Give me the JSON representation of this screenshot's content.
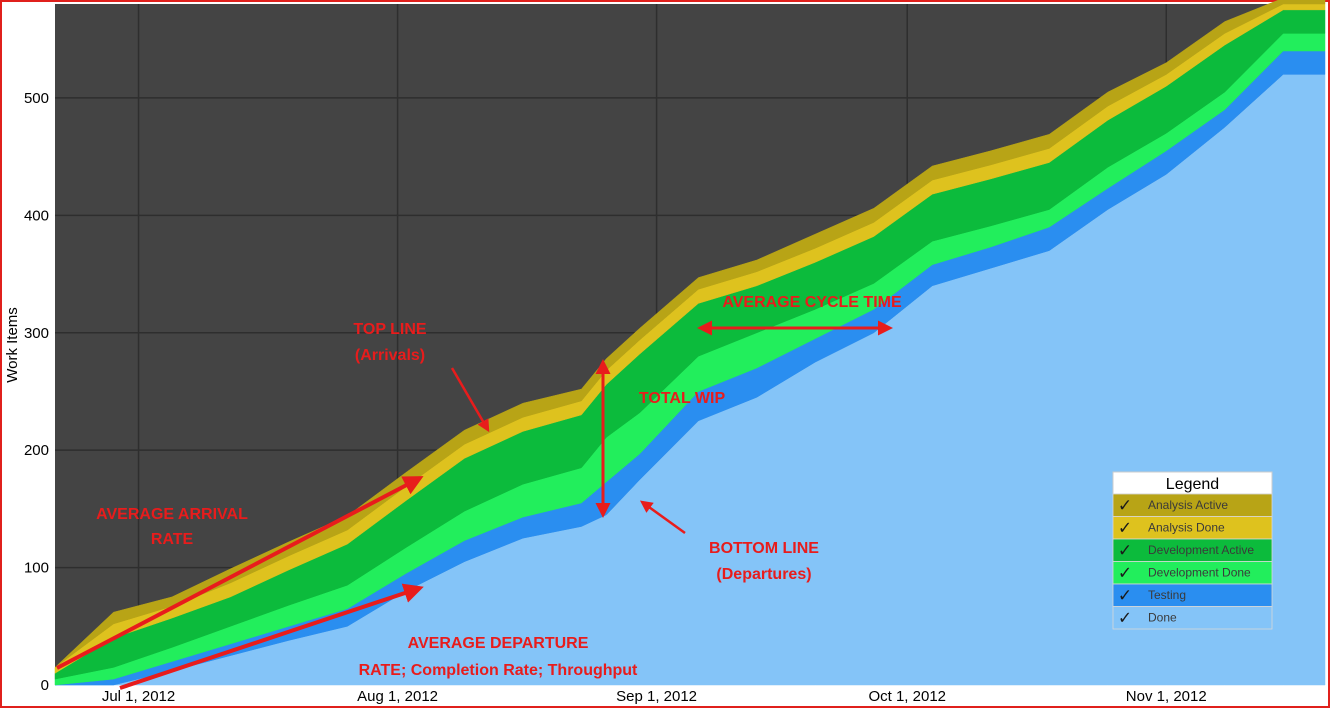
{
  "chart_data": {
    "type": "area",
    "stacked": true,
    "ylabel": "Work Items",
    "xlabel": "",
    "ylim": [
      0,
      580
    ],
    "y_ticks": [
      0,
      100,
      200,
      300,
      400,
      500
    ],
    "x_ticks": [
      "Jul 1, 2012",
      "Aug 1, 2012",
      "Sep 1, 2012",
      "Oct 1, 2012",
      "Nov 1, 2012"
    ],
    "x_dates": [
      "2012-06-21",
      "2012-06-28",
      "2012-07-05",
      "2012-07-12",
      "2012-07-19",
      "2012-07-26",
      "2012-08-02",
      "2012-08-09",
      "2012-08-16",
      "2012-08-23",
      "2012-08-26",
      "2012-08-30",
      "2012-09-06",
      "2012-09-13",
      "2012-09-20",
      "2012-09-27",
      "2012-10-04",
      "2012-10-11",
      "2012-10-18",
      "2012-10-25",
      "2012-11-01",
      "2012-11-08",
      "2012-11-15"
    ],
    "grid": true,
    "legend_position": "bottom-right",
    "series": [
      {
        "name": "Done",
        "color": "#84c4f8",
        "values": [
          0,
          0,
          12,
          25,
          38,
          50,
          80,
          105,
          125,
          135,
          145,
          175,
          225,
          245,
          275,
          300,
          340,
          355,
          370,
          405,
          435,
          475,
          520
        ]
      },
      {
        "name": "Testing",
        "color": "#2a8ef0",
        "values": [
          0,
          5,
          8,
          10,
          12,
          15,
          15,
          18,
          18,
          20,
          28,
          22,
          25,
          25,
          20,
          20,
          18,
          18,
          20,
          18,
          20,
          15,
          20
        ]
      },
      {
        "name": "Development Done",
        "color": "#22ee5c",
        "values": [
          5,
          10,
          12,
          15,
          18,
          20,
          22,
          25,
          28,
          30,
          38,
          35,
          30,
          30,
          25,
          22,
          20,
          18,
          15,
          18,
          15,
          15,
          15
        ]
      },
      {
        "name": "Development Active",
        "color": "#0cbb3c",
        "values": [
          5,
          25,
          25,
          25,
          30,
          35,
          40,
          45,
          45,
          45,
          45,
          50,
          45,
          40,
          40,
          40,
          40,
          40,
          40,
          40,
          40,
          40,
          20
        ]
      },
      {
        "name": "Analysis Done",
        "color": "#dec21e",
        "values": [
          5,
          12,
          10,
          12,
          12,
          12,
          12,
          12,
          12,
          12,
          12,
          12,
          12,
          12,
          12,
          12,
          12,
          12,
          12,
          12,
          10,
          10,
          5
        ]
      },
      {
        "name": "Analysis Active",
        "color": "#b8a416",
        "values": [
          0,
          10,
          8,
          12,
          12,
          12,
          12,
          12,
          12,
          10,
          10,
          10,
          10,
          10,
          12,
          12,
          12,
          12,
          12,
          12,
          10,
          10,
          5
        ]
      }
    ],
    "annotations": {
      "avg_arrival": [
        "AVERAGE ARRIVAL",
        "RATE"
      ],
      "top_line": [
        "TOP LINE",
        "(Arrivals)"
      ],
      "total_wip": "TOTAL WIP",
      "avg_cycle": "AVERAGE CYCLE TIME",
      "bottom_line": [
        "BOTTOM LINE",
        "(Departures)"
      ],
      "avg_departure": [
        "AVERAGE DEPARTURE",
        "RATE; Completion Rate; Throughput"
      ]
    },
    "legend": {
      "title": "Legend",
      "check_glyph": "✓",
      "items": [
        {
          "label": "Analysis Active",
          "color": "#b8a416"
        },
        {
          "label": "Analysis Done",
          "color": "#dec21e"
        },
        {
          "label": "Development Active",
          "color": "#0cbb3c"
        },
        {
          "label": "Development Done",
          "color": "#22ee5c"
        },
        {
          "label": "Testing",
          "color": "#2a8ef0"
        },
        {
          "label": "Done",
          "color": "#84c4f8"
        }
      ]
    },
    "colors": {
      "plot_background": "#444444",
      "grid": "#2e2e2e",
      "annotation": "#e81c1c",
      "frame": "#e0201c"
    }
  }
}
